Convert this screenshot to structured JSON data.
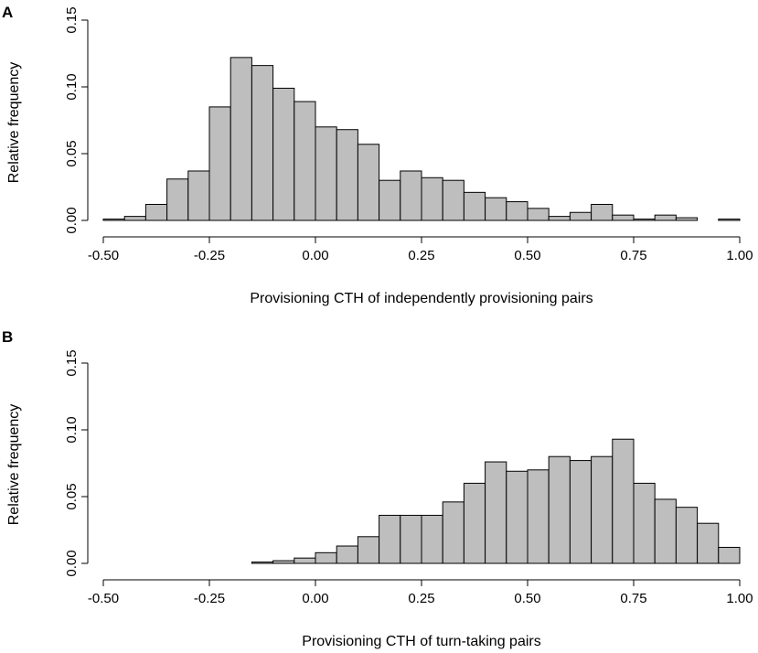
{
  "chart_data": [
    {
      "type": "bar",
      "panel_label": "A",
      "title": "",
      "xlabel": "Provisioning CTH of independently provisioning pairs",
      "ylabel": "Relative frequency",
      "xlim": [
        -0.5,
        1.0
      ],
      "ylim": [
        0,
        0.15
      ],
      "bin_width": 0.05,
      "x_ticks": [
        -0.5,
        -0.25,
        0.0,
        0.25,
        0.5,
        0.75,
        1.0
      ],
      "x_tick_labels": [
        "-0.50",
        "-0.25",
        "0.00",
        "0.25",
        "0.50",
        "0.75",
        "1.00"
      ],
      "y_ticks": [
        0.0,
        0.05,
        0.1,
        0.15
      ],
      "y_tick_labels": [
        "0.00",
        "0.05",
        "0.10",
        "0.15"
      ],
      "bin_starts": [
        -0.5,
        -0.45,
        -0.4,
        -0.35,
        -0.3,
        -0.25,
        -0.2,
        -0.15,
        -0.1,
        -0.05,
        0.0,
        0.05,
        0.1,
        0.15,
        0.2,
        0.25,
        0.3,
        0.35,
        0.4,
        0.45,
        0.5,
        0.55,
        0.6,
        0.65,
        0.7,
        0.75,
        0.8,
        0.85,
        0.9,
        0.95
      ],
      "values": [
        0.001,
        0.003,
        0.012,
        0.031,
        0.037,
        0.085,
        0.122,
        0.116,
        0.099,
        0.089,
        0.07,
        0.068,
        0.057,
        0.03,
        0.037,
        0.032,
        0.03,
        0.021,
        0.017,
        0.014,
        0.009,
        0.003,
        0.006,
        0.012,
        0.004,
        0.001,
        0.004,
        0.002,
        0.0,
        0.001
      ]
    },
    {
      "type": "bar",
      "panel_label": "B",
      "title": "",
      "xlabel": "Provisioning CTH of turn-taking pairs",
      "ylabel": "Relative frequency",
      "xlim": [
        -0.5,
        1.0
      ],
      "ylim": [
        0,
        0.15
      ],
      "bin_width": 0.05,
      "x_ticks": [
        -0.5,
        -0.25,
        0.0,
        0.25,
        0.5,
        0.75,
        1.0
      ],
      "x_tick_labels": [
        "-0.50",
        "-0.25",
        "0.00",
        "0.25",
        "0.50",
        "0.75",
        "1.00"
      ],
      "y_ticks": [
        0.0,
        0.05,
        0.1,
        0.15
      ],
      "y_tick_labels": [
        "0.00",
        "0.05",
        "0.10",
        "0.15"
      ],
      "bin_starts": [
        -0.5,
        -0.45,
        -0.4,
        -0.35,
        -0.3,
        -0.25,
        -0.2,
        -0.15,
        -0.1,
        -0.05,
        0.0,
        0.05,
        0.1,
        0.15,
        0.2,
        0.25,
        0.3,
        0.35,
        0.4,
        0.45,
        0.5,
        0.55,
        0.6,
        0.65,
        0.7,
        0.75,
        0.8,
        0.85,
        0.9,
        0.95
      ],
      "values": [
        0,
        0,
        0,
        0,
        0,
        0,
        0,
        0.001,
        0.002,
        0.004,
        0.008,
        0.013,
        0.02,
        0.036,
        0.036,
        0.036,
        0.046,
        0.06,
        0.076,
        0.069,
        0.07,
        0.08,
        0.077,
        0.08,
        0.093,
        0.06,
        0.048,
        0.042,
        0.03,
        0.012
      ]
    }
  ]
}
